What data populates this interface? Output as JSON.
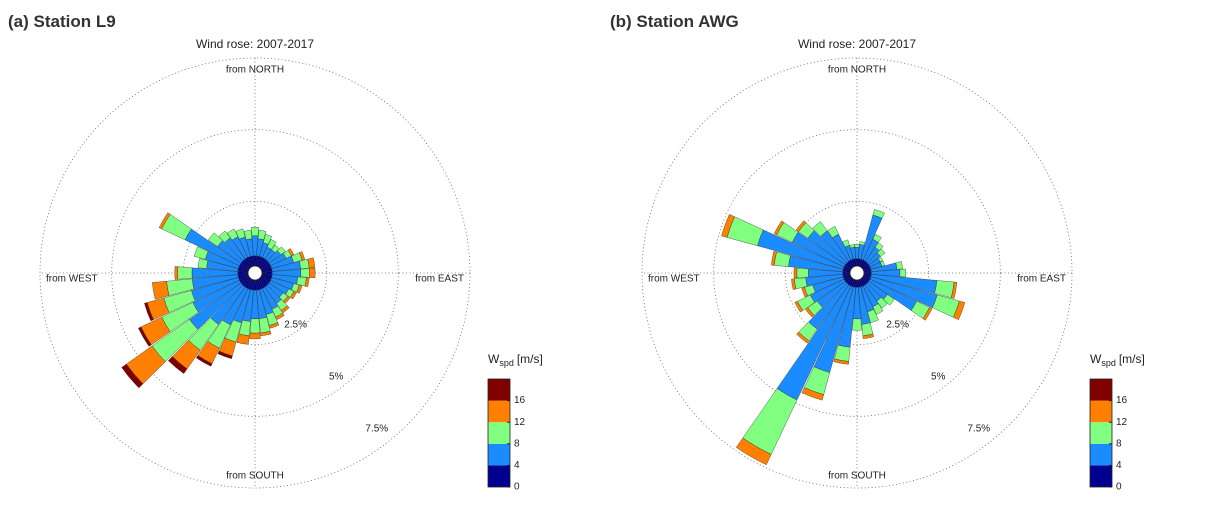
{
  "chart_data": [
    {
      "type": "windrose",
      "title": "(a) Station L9",
      "subtitle": "Wind rose: 2007-2017",
      "direction_labels": [
        "from NORTH",
        "from EAST",
        "from SOUTH",
        "from WEST"
      ],
      "rlim": [
        0,
        7.5
      ],
      "rticks": [
        {
          "value": 2.5,
          "label": "2.5%"
        },
        {
          "value": 5,
          "label": "5%"
        },
        {
          "value": 7.5,
          "label": "7.5%"
        }
      ],
      "colorbar": {
        "title": "W",
        "title_sub": "spd",
        "title_unit": "[m/s]",
        "clim": [
          0,
          20
        ],
        "ticks": [
          0,
          4,
          8,
          12,
          16
        ]
      },
      "series": [
        {
          "color": "#00008f",
          "values": [
            0.6,
            0.6,
            0.6,
            0.6,
            0.6,
            0.6,
            0.6,
            0.6,
            0.6,
            0.6,
            0.6,
            0.6,
            0.6,
            0.6,
            0.6,
            0.6,
            0.6,
            0.6,
            0.6,
            0.6,
            0.6,
            0.6,
            0.6,
            0.6,
            0.6,
            0.6,
            0.6,
            0.6,
            0.6,
            0.6,
            0.6,
            0.6,
            0.6,
            0.6,
            0.6,
            0.6
          ]
        },
        {
          "color": "#1a8cff",
          "values": [
            0.7,
            0.6,
            0.5,
            0.4,
            0.4,
            0.5,
            0.6,
            0.8,
            1.0,
            1.0,
            0.9,
            0.8,
            0.7,
            0.6,
            0.7,
            0.8,
            0.9,
            1.0,
            1.0,
            1.1,
            1.2,
            1.4,
            1.6,
            2.2,
            1.8,
            1.7,
            1.6,
            1.6,
            1.1,
            1.2,
            2.1,
            1.0,
            0.9,
            0.8,
            0.7,
            0.6
          ]
        },
        {
          "color": "#80ff80",
          "values": [
            0.3,
            0.3,
            0.3,
            0.3,
            0.2,
            0.2,
            0.2,
            0.3,
            0.3,
            0.3,
            0.3,
            0.2,
            0.2,
            0.2,
            0.3,
            0.3,
            0.4,
            0.5,
            0.5,
            0.5,
            0.7,
            0.9,
            1.1,
            1.6,
            1.2,
            1.0,
            0.9,
            0.5,
            0.3,
            0.4,
            0.9,
            0.4,
            0.3,
            0.3,
            0.3,
            0.3
          ]
        },
        {
          "color": "#ff8000",
          "values": [
            0,
            0,
            0,
            0,
            0,
            0,
            0.1,
            0.1,
            0.2,
            0.2,
            0.1,
            0.1,
            0.1,
            0.1,
            0.1,
            0.1,
            0.1,
            0.1,
            0.2,
            0.3,
            0.5,
            0.6,
            0.8,
            1.1,
            0.8,
            0.6,
            0.5,
            0.1,
            0,
            0,
            0.1,
            0,
            0,
            0,
            0,
            0
          ]
        },
        {
          "color": "#800000",
          "values": [
            0,
            0,
            0,
            0,
            0,
            0,
            0,
            0,
            0,
            0,
            0,
            0,
            0,
            0,
            0,
            0,
            0,
            0,
            0,
            0,
            0.1,
            0.1,
            0.2,
            0.2,
            0.1,
            0.1,
            0,
            0,
            0,
            0,
            0,
            0,
            0,
            0,
            0,
            0
          ]
        }
      ]
    },
    {
      "type": "windrose",
      "title": "(b) Station AWG",
      "subtitle": "Wind rose: 2007-2017",
      "direction_labels": [
        "from NORTH",
        "from EAST",
        "from SOUTH",
        "from WEST"
      ],
      "rlim": [
        0,
        7.5
      ],
      "rticks": [
        {
          "value": 2.5,
          "label": "2.5%"
        },
        {
          "value": 5,
          "label": "5%"
        },
        {
          "value": 7.5,
          "label": "7.5%"
        }
      ],
      "colorbar": {
        "title": "W",
        "title_sub": "spd",
        "title_unit": "[m/s]",
        "clim": [
          0,
          20
        ],
        "ticks": [
          0,
          4,
          8,
          12,
          16
        ]
      },
      "series": [
        {
          "color": "#00008f",
          "values": [
            0.5,
            0.5,
            0.5,
            0.5,
            0.5,
            0.5,
            0.5,
            0.5,
            0.5,
            0.5,
            0.5,
            0.5,
            0.5,
            0.5,
            0.5,
            0.5,
            0.5,
            0.5,
            0.5,
            0.5,
            0.5,
            0.5,
            0.5,
            0.5,
            0.5,
            0.5,
            0.5,
            0.5,
            0.5,
            0.5,
            0.5,
            0.5,
            0.5,
            0.5,
            0.5,
            0.5
          ]
        },
        {
          "color": "#1a8cff",
          "values": [
            0.4,
            0.5,
            1.6,
            0.8,
            0.6,
            0.5,
            0.4,
            0.4,
            0.9,
            1.0,
            2.3,
            2.4,
            1.8,
            0.8,
            0.7,
            0.8,
            0.9,
            1.3,
            1.1,
            2.1,
            3.1,
            4.4,
            1.9,
            1.2,
            1.3,
            1.1,
            1.3,
            1.2,
            1.9,
            3.1,
            2.0,
            1.6,
            1.3,
            1.0,
            0.5,
            0.4
          ]
        },
        {
          "color": "#80ff80",
          "values": [
            0.1,
            0.1,
            0.2,
            0.2,
            0.2,
            0.2,
            0.1,
            0.1,
            0.2,
            0.2,
            0.6,
            0.8,
            0.5,
            0.3,
            0.3,
            0.3,
            0.4,
            0.4,
            0.4,
            0.5,
            0.8,
            2.1,
            0.5,
            0.4,
            0.5,
            0.3,
            0.4,
            0.4,
            0.5,
            1.1,
            0.6,
            0.4,
            0.4,
            0.3,
            0.2,
            0.1
          ]
        },
        {
          "color": "#ff8000",
          "values": [
            0,
            0,
            0,
            0,
            0,
            0,
            0,
            0,
            0,
            0,
            0.1,
            0.2,
            0.1,
            0,
            0,
            0,
            0,
            0.1,
            0,
            0.1,
            0.2,
            0.4,
            0.1,
            0.1,
            0.1,
            0.1,
            0.1,
            0.1,
            0.1,
            0.2,
            0.1,
            0.1,
            0,
            0,
            0,
            0
          ]
        },
        {
          "color": "#800000",
          "values": [
            0,
            0,
            0,
            0,
            0,
            0,
            0,
            0,
            0,
            0,
            0,
            0,
            0,
            0,
            0,
            0,
            0,
            0,
            0,
            0,
            0,
            0,
            0,
            0,
            0,
            0,
            0,
            0,
            0,
            0,
            0,
            0,
            0,
            0,
            0,
            0
          ]
        }
      ]
    }
  ]
}
